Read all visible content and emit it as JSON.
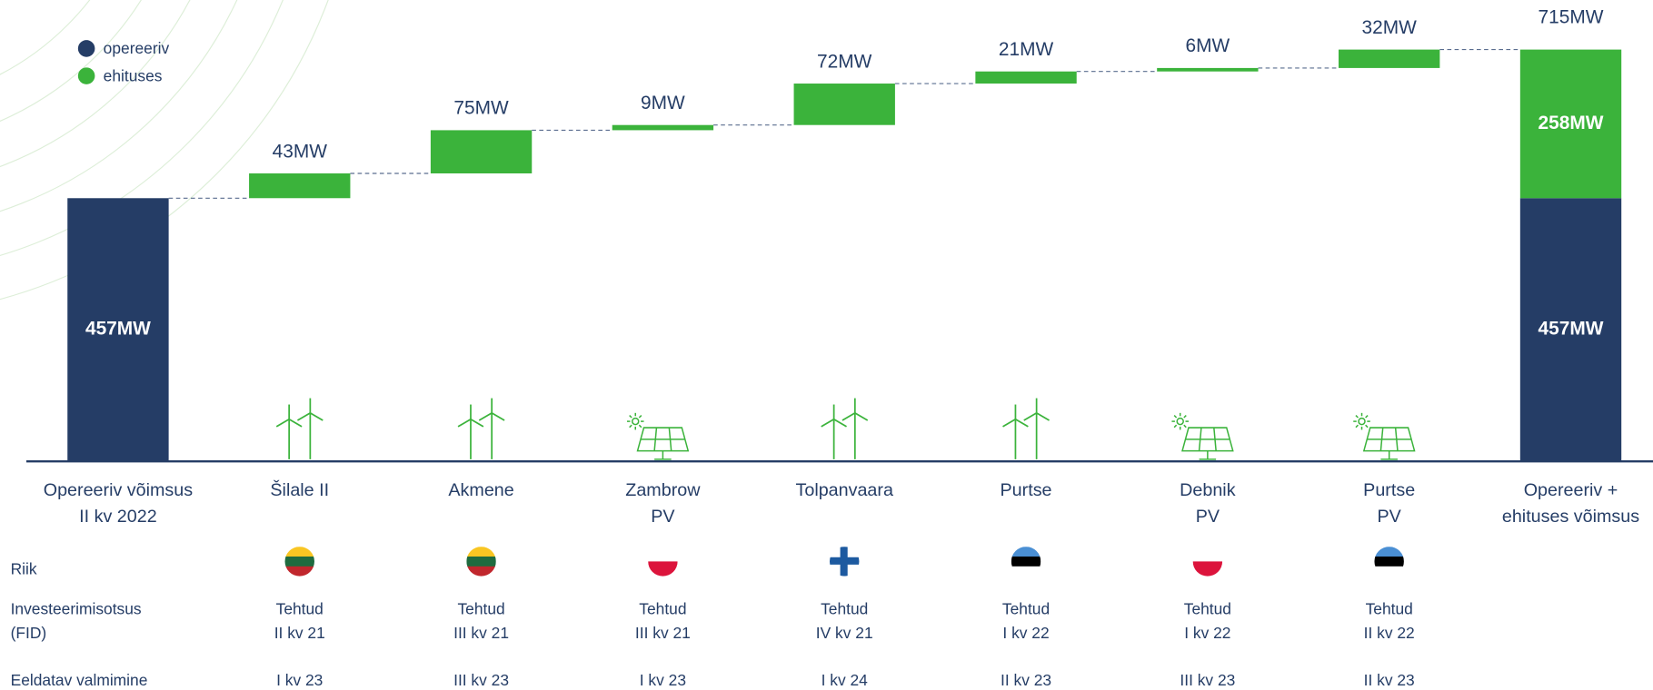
{
  "chart_data": {
    "type": "waterfall",
    "categories": [
      [
        "Opereeriv võimsus",
        "II kv 2022"
      ],
      [
        "Šilale II"
      ],
      [
        "Akmene"
      ],
      [
        "Zambrow",
        "PV"
      ],
      [
        "Tolpanvaara"
      ],
      [
        "Purtse"
      ],
      [
        "Debnik",
        "PV"
      ],
      [
        "Purtse",
        "PV"
      ],
      [
        "Opereeriv +",
        "ehituses võimsus"
      ]
    ],
    "series": [
      {
        "name": "opereeriv",
        "color": "#253d66",
        "values": [
          457,
          null,
          null,
          null,
          null,
          null,
          null,
          null,
          457
        ],
        "value_labels": [
          "457MW",
          null,
          null,
          null,
          null,
          null,
          null,
          null,
          "457MW"
        ]
      },
      {
        "name": "ehituses",
        "color": "#3bb33b",
        "values": [
          null,
          43,
          75,
          9,
          72,
          21,
          6,
          32,
          258
        ],
        "value_labels": [
          null,
          "43MW",
          "75MW",
          "9MW",
          "72MW",
          "21MW",
          "6MW",
          "32MW",
          "258MW"
        ]
      }
    ],
    "total": 715,
    "total_label": "715MW",
    "legend": "upper left"
  },
  "table": {
    "country": "Riik",
    "fid": {
      "label": [
        "Investeerimisotsus",
        "(FID)"
      ],
      "cells": [
        [
          "Tehtud",
          "II kv 21"
        ],
        [
          "Tehtud",
          "III kv 21"
        ],
        [
          "Tehtud",
          "III kv 21"
        ],
        [
          "Tehtud",
          "IV kv 21"
        ],
        [
          "Tehtud",
          "I kv 22"
        ],
        [
          "Tehtud",
          "I kv 22"
        ],
        [
          "Tehtud",
          "II kv 22"
        ]
      ]
    },
    "completion": {
      "label": [
        "Eeldatav valmimine"
      ],
      "cells": [
        "I kv 23",
        "III kv 23",
        "I kv 23",
        "I kv 24",
        "II kv 23",
        "III kv 23",
        "II kv 23"
      ]
    }
  }
}
